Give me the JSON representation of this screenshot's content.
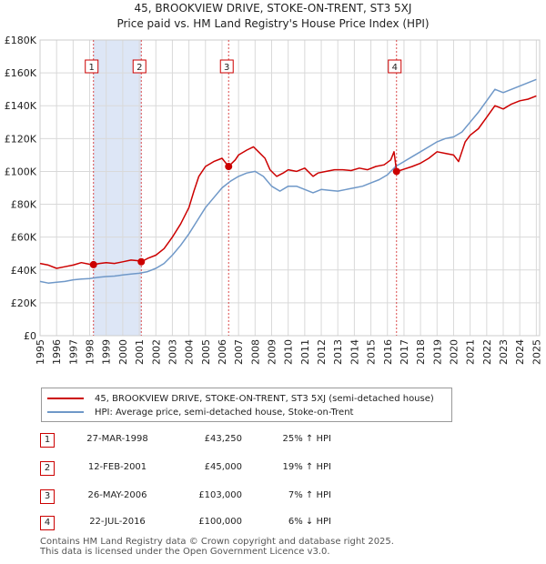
{
  "title_line1": "45, BROOKVIEW DRIVE, STOKE-ON-TRENT, ST3 5XJ",
  "title_line2": "Price paid vs. HM Land Registry's House Price Index (HPI)",
  "colors": {
    "property": "#cc0000",
    "hpi": "#6f98c8",
    "band": "#dde6f6",
    "grid": "#d9d9d9"
  },
  "legend": {
    "property_label": "45, BROOKVIEW DRIVE, STOKE-ON-TRENT, ST3 5XJ (semi-detached house)",
    "hpi_label": "HPI: Average price, semi-detached house, Stoke-on-Trent"
  },
  "transactions": [
    {
      "num": "1",
      "date": "27-MAR-1998",
      "price": "£43,250",
      "hpi": "25% ↑ HPI"
    },
    {
      "num": "2",
      "date": "12-FEB-2001",
      "price": "£45,000",
      "hpi": "19% ↑ HPI"
    },
    {
      "num": "3",
      "date": "26-MAY-2006",
      "price": "£103,000",
      "hpi": "7% ↑ HPI"
    },
    {
      "num": "4",
      "date": "22-JUL-2016",
      "price": "£100,000",
      "hpi": "6% ↓ HPI"
    }
  ],
  "footer_line1": "Contains HM Land Registry data © Crown copyright and database right 2025.",
  "footer_line2": "This data is licensed under the Open Government Licence v3.0.",
  "chart_data": {
    "type": "line",
    "title": "45, BROOKVIEW DRIVE, STOKE-ON-TRENT, ST3 5XJ",
    "subtitle": "Price paid vs. HM Land Registry's House Price Index (HPI)",
    "xlabel": "",
    "ylabel": "",
    "xlim": [
      1995,
      2025.2
    ],
    "ylim": [
      0,
      180000
    ],
    "y_ticks": [
      0,
      20000,
      40000,
      60000,
      80000,
      100000,
      120000,
      140000,
      160000,
      180000
    ],
    "y_tick_labels": [
      "£0",
      "£20K",
      "£40K",
      "£60K",
      "£80K",
      "£100K",
      "£120K",
      "£140K",
      "£160K",
      "£180K"
    ],
    "x_ticks": [
      1995,
      1996,
      1997,
      1998,
      1999,
      2000,
      2001,
      2002,
      2003,
      2004,
      2005,
      2006,
      2007,
      2008,
      2009,
      2010,
      2011,
      2012,
      2013,
      2014,
      2015,
      2016,
      2017,
      2018,
      2019,
      2020,
      2021,
      2022,
      2023,
      2024,
      2025
    ],
    "x_tick_labels": [
      "1995",
      "1996",
      "1997",
      "1998",
      "1999",
      "2000",
      "2001",
      "2002",
      "2003",
      "2004",
      "2005",
      "2006",
      "2007",
      "2008",
      "2009",
      "2010",
      "2011",
      "2012",
      "2013",
      "2014",
      "2015",
      "2016",
      "2017",
      "2018",
      "2019",
      "2020",
      "2021",
      "2022",
      "2023",
      "2024",
      "2025"
    ],
    "grid": true,
    "legend_position": "below",
    "shaded_bands": [
      {
        "from": 1998.23,
        "to": 2001.12
      }
    ],
    "sale_markers": [
      {
        "label": "1",
        "x": 1998.23,
        "y": 43250
      },
      {
        "label": "2",
        "x": 2001.12,
        "y": 45000
      },
      {
        "label": "3",
        "x": 2006.4,
        "y": 103000
      },
      {
        "label": "4",
        "x": 2016.55,
        "y": 100000
      }
    ],
    "series": [
      {
        "name": "45, BROOKVIEW DRIVE, STOKE-ON-TRENT, ST3 5XJ (semi-detached house)",
        "color": "#cc0000",
        "points": [
          [
            1995,
            44000
          ],
          [
            1995.5,
            43000
          ],
          [
            1996,
            41000
          ],
          [
            1996.5,
            42000
          ],
          [
            1997,
            43000
          ],
          [
            1997.5,
            44500
          ],
          [
            1998,
            43500
          ],
          [
            1998.23,
            43250
          ],
          [
            1998.6,
            44000
          ],
          [
            1999,
            44500
          ],
          [
            1999.5,
            44000
          ],
          [
            2000,
            45000
          ],
          [
            2000.5,
            46000
          ],
          [
            2001,
            45500
          ],
          [
            2001.12,
            45000
          ],
          [
            2001.5,
            47000
          ],
          [
            2002,
            49000
          ],
          [
            2002.5,
            53000
          ],
          [
            2003,
            60000
          ],
          [
            2003.5,
            68000
          ],
          [
            2004,
            78000
          ],
          [
            2004.3,
            88000
          ],
          [
            2004.6,
            97000
          ],
          [
            2005,
            103000
          ],
          [
            2005.5,
            106000
          ],
          [
            2006,
            108000
          ],
          [
            2006.4,
            103000
          ],
          [
            2006.8,
            107000
          ],
          [
            2007,
            110000
          ],
          [
            2007.5,
            113000
          ],
          [
            2007.9,
            115000
          ],
          [
            2008.2,
            112000
          ],
          [
            2008.6,
            108000
          ],
          [
            2008.9,
            101000
          ],
          [
            2009.3,
            97000
          ],
          [
            2009.7,
            99000
          ],
          [
            2010,
            101000
          ],
          [
            2010.5,
            100000
          ],
          [
            2011,
            102000
          ],
          [
            2011.5,
            97000
          ],
          [
            2011.8,
            99000
          ],
          [
            2012.3,
            100000
          ],
          [
            2012.8,
            101000
          ],
          [
            2013.3,
            101000
          ],
          [
            2013.8,
            100500
          ],
          [
            2014.3,
            102000
          ],
          [
            2014.8,
            101000
          ],
          [
            2015.3,
            103000
          ],
          [
            2015.8,
            104000
          ],
          [
            2016.2,
            107000
          ],
          [
            2016.4,
            112000
          ],
          [
            2016.55,
            100000
          ],
          [
            2016.9,
            101000
          ],
          [
            2017.5,
            103000
          ],
          [
            2018,
            105000
          ],
          [
            2018.5,
            108000
          ],
          [
            2019,
            112000
          ],
          [
            2019.5,
            111000
          ],
          [
            2020,
            110000
          ],
          [
            2020.3,
            106000
          ],
          [
            2020.7,
            118000
          ],
          [
            2021,
            122000
          ],
          [
            2021.5,
            126000
          ],
          [
            2022,
            133000
          ],
          [
            2022.5,
            140000
          ],
          [
            2023,
            138000
          ],
          [
            2023.5,
            141000
          ],
          [
            2024,
            143000
          ],
          [
            2024.5,
            144000
          ],
          [
            2025,
            146000
          ]
        ]
      },
      {
        "name": "HPI: Average price, semi-detached house, Stoke-on-Trent",
        "color": "#6f98c8",
        "points": [
          [
            1995,
            33000
          ],
          [
            1995.5,
            32000
          ],
          [
            1996,
            32500
          ],
          [
            1996.5,
            33000
          ],
          [
            1997,
            34000
          ],
          [
            1997.5,
            34500
          ],
          [
            1998,
            34800
          ],
          [
            1998.5,
            35500
          ],
          [
            1999,
            36000
          ],
          [
            1999.5,
            36300
          ],
          [
            2000,
            37000
          ],
          [
            2000.5,
            37500
          ],
          [
            2001,
            38000
          ],
          [
            2001.5,
            39000
          ],
          [
            2002,
            41000
          ],
          [
            2002.5,
            44000
          ],
          [
            2003,
            49000
          ],
          [
            2003.5,
            55000
          ],
          [
            2004,
            62000
          ],
          [
            2004.5,
            70000
          ],
          [
            2005,
            78000
          ],
          [
            2005.5,
            84000
          ],
          [
            2006,
            90000
          ],
          [
            2006.5,
            94000
          ],
          [
            2007,
            97000
          ],
          [
            2007.5,
            99000
          ],
          [
            2008,
            100000
          ],
          [
            2008.5,
            97000
          ],
          [
            2009,
            91000
          ],
          [
            2009.5,
            88000
          ],
          [
            2010,
            91000
          ],
          [
            2010.5,
            91000
          ],
          [
            2011,
            89000
          ],
          [
            2011.5,
            87000
          ],
          [
            2012,
            89000
          ],
          [
            2012.5,
            88500
          ],
          [
            2013,
            88000
          ],
          [
            2013.5,
            89000
          ],
          [
            2014,
            90000
          ],
          [
            2014.5,
            91000
          ],
          [
            2015,
            93000
          ],
          [
            2015.5,
            95000
          ],
          [
            2016,
            98000
          ],
          [
            2016.5,
            103000
          ],
          [
            2017,
            106000
          ],
          [
            2017.5,
            109000
          ],
          [
            2018,
            112000
          ],
          [
            2018.5,
            115000
          ],
          [
            2019,
            118000
          ],
          [
            2019.5,
            120000
          ],
          [
            2020,
            121000
          ],
          [
            2020.5,
            124000
          ],
          [
            2021,
            130000
          ],
          [
            2021.5,
            136000
          ],
          [
            2022,
            143000
          ],
          [
            2022.5,
            150000
          ],
          [
            2023,
            148000
          ],
          [
            2023.5,
            150000
          ],
          [
            2024,
            152000
          ],
          [
            2024.5,
            154000
          ],
          [
            2025,
            156000
          ]
        ]
      }
    ]
  }
}
